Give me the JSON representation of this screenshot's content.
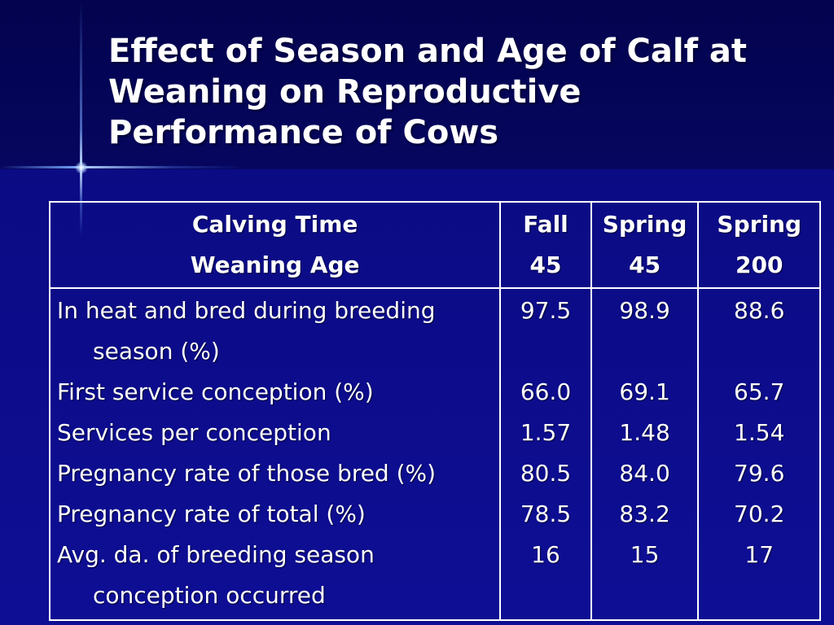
{
  "title": {
    "line1": "Effect of Season and Age of Calf at",
    "line2": "Weaning on Reproductive",
    "line3": "Performance of Cows"
  },
  "table": {
    "header": {
      "label_line1": "Calving Time",
      "label_line2": "Weaning Age",
      "columns": [
        {
          "line1": "Fall",
          "line2": "45"
        },
        {
          "line1": "Spring",
          "line2": "45"
        },
        {
          "line1": "Spring",
          "line2": "200"
        }
      ]
    },
    "rows": [
      {
        "label_line1": "In heat and bred during breeding",
        "label_line2": "season (%)",
        "values": [
          "97.5",
          "98.9",
          "88.6"
        ]
      },
      {
        "label_line1": "First service conception (%)",
        "values": [
          "66.0",
          "69.1",
          "65.7"
        ]
      },
      {
        "label_line1": "Services per conception",
        "values": [
          "1.57",
          "1.48",
          "1.54"
        ]
      },
      {
        "label_line1": "Pregnancy rate of those bred (%)",
        "values": [
          "80.5",
          "84.0",
          "79.6"
        ]
      },
      {
        "label_line1": "Pregnancy rate of total (%)",
        "values": [
          "78.5",
          "83.2",
          "70.2"
        ]
      },
      {
        "label_line1": "Avg. da. of breeding season",
        "label_line2": "conception occurred",
        "values": [
          "16",
          "15",
          "17"
        ]
      }
    ]
  }
}
